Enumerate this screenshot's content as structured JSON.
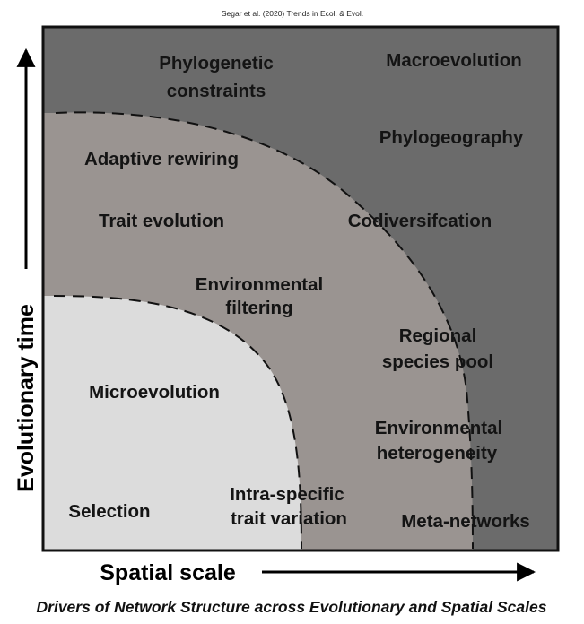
{
  "citation": "Segar et al. (2020) Trends in Ecol. & Evol.",
  "axes": {
    "y_label": "Evolutionary time",
    "x_label": "Spatial scale"
  },
  "regions": {
    "outer": {
      "color": "#6b6b6b",
      "labels": {
        "phylogenetic_constraints": [
          "Phylogenetic",
          "constraints"
        ],
        "macroevolution": "Macroevolution",
        "phylogeography": "Phylogeography",
        "meta_networks": "Meta-networks"
      }
    },
    "middle": {
      "color": "#9a9491",
      "labels": {
        "adaptive_rewiring": "Adaptive rewiring",
        "trait_evolution": "Trait evolution",
        "codiversification": "Codiversifcation",
        "environmental_filtering": [
          "Environmental",
          "filtering"
        ],
        "regional_species_pool": [
          "Regional",
          "species pool"
        ],
        "environmental_heterogeneity": [
          "Environmental",
          "heterogeneity"
        ],
        "intra_specific_trait_variation": [
          "Intra-specific",
          "trait variation"
        ]
      }
    },
    "inner": {
      "color": "#dcdcdc",
      "labels": {
        "microevolution": "Microevolution",
        "selection": "Selection"
      }
    }
  },
  "caption": "Drivers of Network Structure across Evolutionary and Spatial Scales"
}
